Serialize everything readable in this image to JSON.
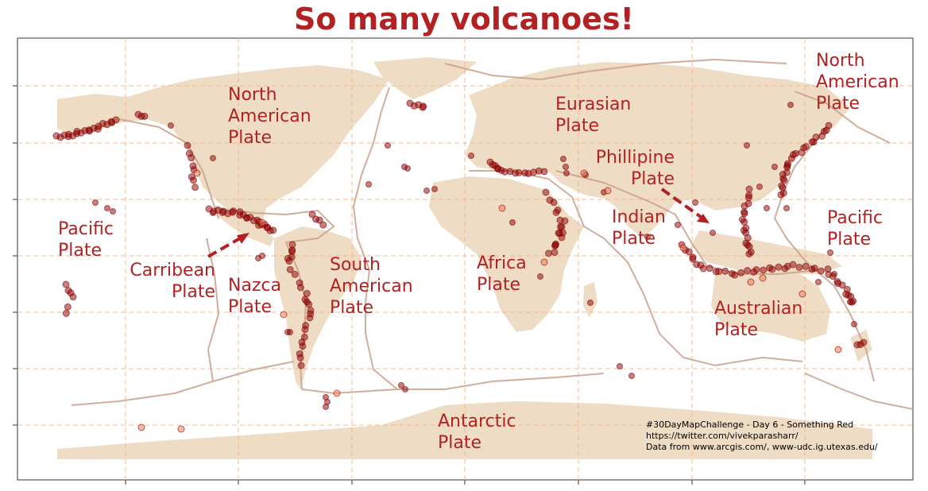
{
  "title": "So many volcanoes!",
  "colors": {
    "land": "#efdcc5",
    "plate_boundary": "#c9a08a",
    "grid": "#f6b88f",
    "volcano": "#8b0000",
    "volcano_light": "#f08050",
    "label": "#b22222"
  },
  "plate_labels": [
    {
      "lines": [
        "North",
        "American",
        "Plate"
      ],
      "id": "north-american-plate-label"
    },
    {
      "lines": [
        "North",
        "American",
        "Plate"
      ],
      "id": "north-american-plate-label-east"
    },
    {
      "lines": [
        "Eurasian",
        "Plate"
      ],
      "id": "eurasian-plate-label"
    },
    {
      "lines": [
        "Phillipine",
        "Plate"
      ],
      "id": "phillipine-plate-label"
    },
    {
      "lines": [
        "Pacific",
        "Plate"
      ],
      "id": "pacific-plate-label-west"
    },
    {
      "lines": [
        "Pacific",
        "Plate"
      ],
      "id": "pacific-plate-label-east"
    },
    {
      "lines": [
        "Carribean",
        "Plate"
      ],
      "id": "carribean-plate-label"
    },
    {
      "lines": [
        "Nazca",
        "Plate"
      ],
      "id": "nazca-plate-label"
    },
    {
      "lines": [
        "South",
        "American",
        "Plate"
      ],
      "id": "south-american-plate-label"
    },
    {
      "lines": [
        "Africa",
        "Plate"
      ],
      "id": "africa-plate-label"
    },
    {
      "lines": [
        "Indian",
        "Plate"
      ],
      "id": "indian-plate-label"
    },
    {
      "lines": [
        "Australian",
        "Plate"
      ],
      "id": "australian-plate-label"
    },
    {
      "lines": [
        "Antarctic",
        "Plate"
      ],
      "id": "antarctic-plate-label"
    }
  ],
  "credits": [
    "#30DayMapChallenge - Day 6 - Something Red",
    "https://twitter.com/vivekparasharr/",
    "Data from www.arcgis.com/, www-udc.ig.utexas.edu/"
  ]
}
